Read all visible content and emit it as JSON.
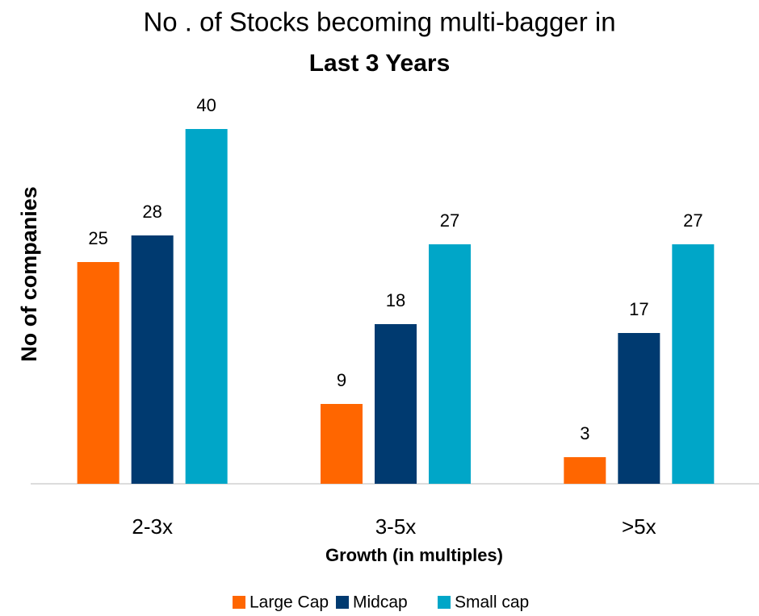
{
  "chart_data": {
    "type": "bar",
    "title": "No . of Stocks becoming multi-bagger in",
    "subtitle": "Last 3 Years",
    "x_label": "Growth (in multiples)",
    "y_label": "No of companies",
    "categories": [
      "2-3x",
      "3-5x",
      ">5x"
    ],
    "series": [
      {
        "name": "Large Cap",
        "color": "#ff6600",
        "values": [
          25,
          9,
          3
        ]
      },
      {
        "name": "Midcap",
        "color": "#003a70",
        "values": [
          28,
          18,
          17
        ]
      },
      {
        "name": "Small cap",
        "color": "#00a6c8",
        "values": [
          40,
          27,
          27
        ]
      }
    ],
    "ylim": [
      0,
      45
    ]
  }
}
